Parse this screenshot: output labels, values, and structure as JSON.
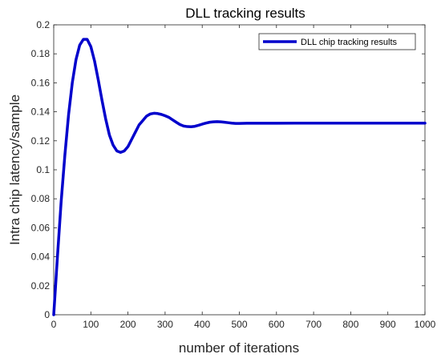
{
  "chart_data": {
    "type": "line",
    "title": "DLL tracking results",
    "xlabel": "number of iterations",
    "ylabel": "Intra chip latency/sample",
    "xlim": [
      0,
      1000
    ],
    "ylim": [
      0,
      0.2
    ],
    "xticks": [
      0,
      100,
      200,
      300,
      400,
      500,
      600,
      700,
      800,
      900,
      1000
    ],
    "yticks": [
      0,
      0.02,
      0.04,
      0.06,
      0.08,
      0.1,
      0.12,
      0.14,
      0.16,
      0.18,
      0.2
    ],
    "grid": false,
    "legend_position": "top-right",
    "series": [
      {
        "name": "DLL chip tracking results",
        "color": "#0000cc",
        "x": [
          0,
          10,
          20,
          30,
          40,
          50,
          60,
          70,
          80,
          90,
          100,
          110,
          120,
          130,
          140,
          150,
          160,
          170,
          180,
          190,
          200,
          210,
          220,
          230,
          240,
          250,
          260,
          270,
          280,
          290,
          300,
          310,
          320,
          330,
          340,
          350,
          360,
          370,
          380,
          390,
          400,
          410,
          420,
          430,
          440,
          450,
          460,
          470,
          480,
          490,
          500,
          520,
          540,
          560,
          580,
          600,
          650,
          700,
          750,
          800,
          850,
          900,
          950,
          1000
        ],
        "y": [
          0,
          0.04,
          0.078,
          0.11,
          0.138,
          0.16,
          0.176,
          0.186,
          0.19,
          0.19,
          0.185,
          0.175,
          0.162,
          0.148,
          0.135,
          0.124,
          0.117,
          0.113,
          0.112,
          0.113,
          0.116,
          0.121,
          0.126,
          0.131,
          0.134,
          0.137,
          0.1385,
          0.139,
          0.1388,
          0.1382,
          0.1373,
          0.1362,
          0.1345,
          0.1328,
          0.1312,
          0.1302,
          0.1298,
          0.1297,
          0.13,
          0.1307,
          0.1315,
          0.1322,
          0.1328,
          0.1331,
          0.1332,
          0.1331,
          0.1328,
          0.1325,
          0.1322,
          0.132,
          0.132,
          0.1321,
          0.1321,
          0.1321,
          0.1321,
          0.1321,
          0.1322,
          0.1322,
          0.1322,
          0.1322,
          0.1322,
          0.1322,
          0.1322,
          0.1322
        ]
      }
    ]
  }
}
